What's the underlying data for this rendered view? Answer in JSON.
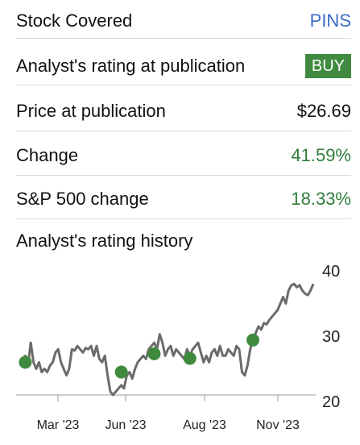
{
  "rows": {
    "stock": {
      "label": "Stock Covered",
      "value": "PINS"
    },
    "rating": {
      "label": "Analyst's rating at publication",
      "value": "BUY"
    },
    "price": {
      "label": "Price at publication",
      "value": "$26.69"
    },
    "change": {
      "label": "Change",
      "value": "41.59%"
    },
    "sp": {
      "label": "S&P 500 change",
      "value": "18.33%"
    }
  },
  "history": {
    "title": "Analyst's rating history"
  },
  "colors": {
    "ticker": "#3a6bc9",
    "positive": "#2f7d3b",
    "badge": "#3f8a3f",
    "line": "#6b6b6b",
    "marker": "#3f8a3f"
  },
  "chart_data": {
    "type": "line",
    "x_ticks": [
      "Mar '23",
      "Jun '23",
      "Aug '23",
      "Nov '23"
    ],
    "y_ticks": [
      "20",
      "30",
      "40"
    ],
    "ylim": [
      20,
      40
    ],
    "grid": false,
    "series": [
      {
        "values": [
          26.5,
          27,
          25.5,
          29,
          26,
          25,
          26,
          24.5,
          25,
          24.5,
          25.5,
          26,
          27.5,
          28,
          26,
          25,
          24,
          25,
          28,
          27.8,
          28.5,
          28,
          27.5,
          28.2,
          28,
          28.5,
          27,
          28.5,
          26.5,
          26,
          27,
          24,
          21.5,
          21,
          21.5,
          22,
          22.5,
          22,
          24,
          24.5,
          23.5,
          25,
          26,
          26.5,
          27,
          26.5,
          28,
          28.5,
          29,
          28,
          30.3,
          29,
          27,
          28,
          28.5,
          27,
          28,
          27.5,
          27,
          26.5,
          28,
          27,
          28,
          28.5,
          29,
          27.5,
          26,
          27,
          26,
          27.5,
          28,
          27,
          28.5,
          27,
          27,
          28,
          27.5,
          27,
          28.5,
          28,
          24.5,
          24,
          25.5,
          28,
          29.5,
          30.5,
          31.5,
          31,
          32,
          31.8,
          32.5,
          33,
          33.5,
          34,
          35,
          36,
          35,
          37,
          37.8,
          38,
          37.5,
          37.8,
          37,
          36.5,
          36.3,
          37,
          38
        ]
      }
    ],
    "markers": [
      {
        "index": 1,
        "value": 26
      },
      {
        "index": 36,
        "value": 24.5
      },
      {
        "index": 48,
        "value": 27.3
      },
      {
        "index": 61,
        "value": 26.6
      },
      {
        "index": 84,
        "value": 29.4
      }
    ]
  }
}
